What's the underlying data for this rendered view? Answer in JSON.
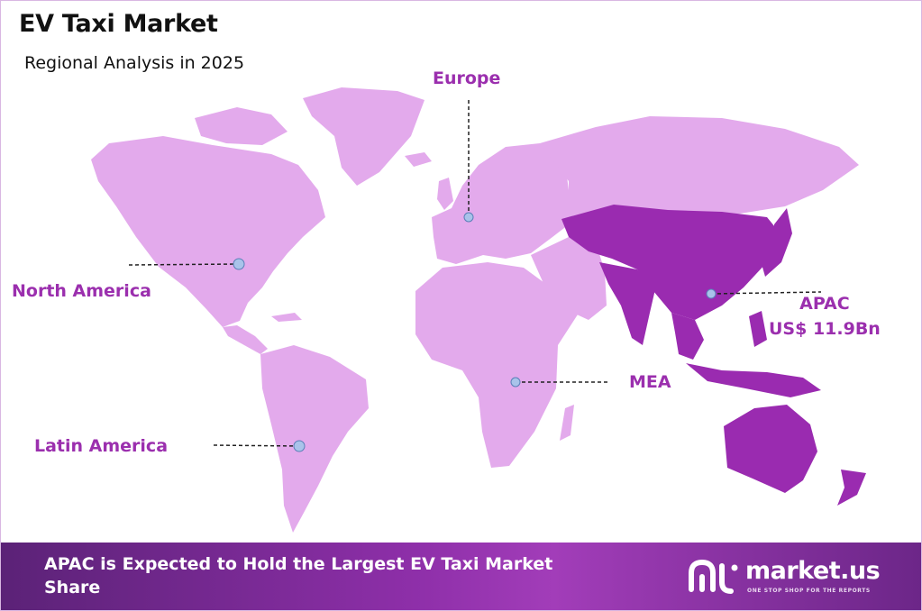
{
  "header": {
    "title": "EV Taxi Market",
    "subtitle": "Regional Analysis in 2025"
  },
  "regions": {
    "europe": "Europe",
    "north_america": "North America",
    "latin_america": "Latin America",
    "mea": "MEA",
    "apac": "APAC",
    "apac_value": "US$ 11.9Bn"
  },
  "highlight": {
    "region": "APAC",
    "status": "largest share"
  },
  "colors": {
    "land": "#e3aaec",
    "highlight": "#9a2bb0",
    "label": "#9b2fae",
    "banner": "#8e2fa9",
    "marker": "#a9c3ea"
  },
  "banner": {
    "text": "APAC is Expected to Hold the Largest EV Taxi Market Share"
  },
  "brand": {
    "name": "market.us",
    "tagline": "ONE STOP SHOP FOR THE REPORTS",
    "logo_icon": "market-us-logo-icon"
  }
}
